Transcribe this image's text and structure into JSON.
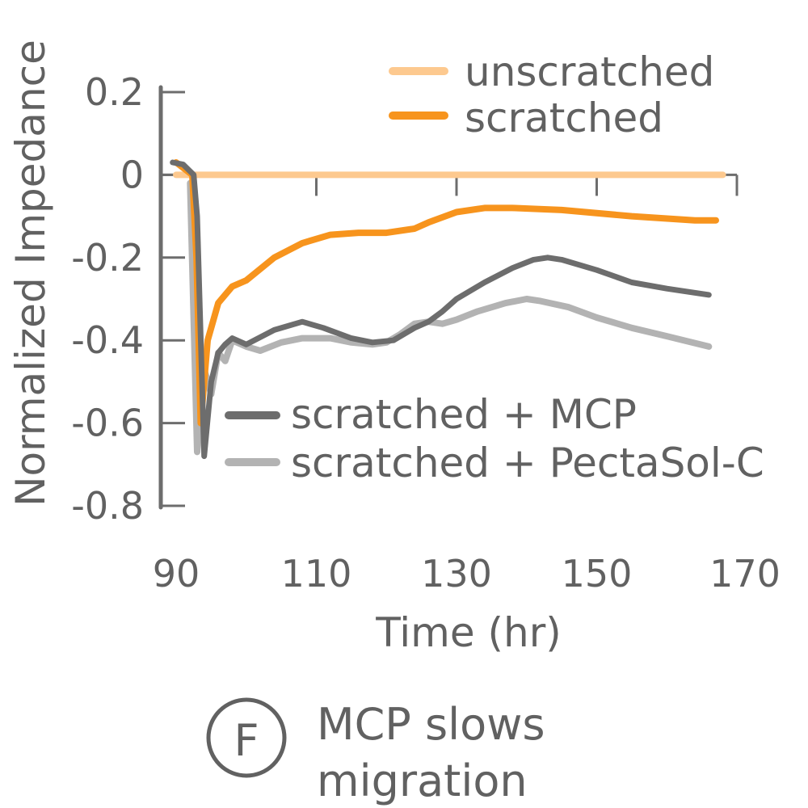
{
  "chart_data": {
    "type": "line",
    "xlabel": "Time (hr)",
    "ylabel": "Normalized Impedance",
    "xlim": [
      90,
      170
    ],
    "ylim": [
      -0.8,
      0.2
    ],
    "xticks": [
      90,
      110,
      130,
      150,
      170
    ],
    "yticks": [
      0.2,
      0,
      -0.2,
      -0.4,
      -0.6,
      -0.8
    ],
    "xtick_labels": [
      "90",
      "110",
      "130",
      "150",
      "170"
    ],
    "ytick_labels": [
      "0.2",
      "0",
      "-0.2",
      "-0.4",
      "-0.6",
      "-0.8"
    ],
    "grid": false,
    "legend_placement": "top-right and center",
    "series": [
      {
        "name": "unscratched",
        "color": "#FDC98F",
        "x": [
          90,
          97,
          110,
          130,
          150,
          168
        ],
        "y": [
          0,
          0,
          0,
          0,
          0,
          0
        ]
      },
      {
        "name": "scratched",
        "color": "#F7941D",
        "x": [
          90,
          92.3,
          92.9,
          93.5,
          94.5,
          96,
          98,
          100,
          104,
          108,
          112,
          116,
          120,
          124,
          126,
          130,
          134,
          138,
          145,
          155,
          164,
          167
        ],
        "y": [
          0.03,
          0.0,
          -0.2,
          -0.6,
          -0.4,
          -0.31,
          -0.27,
          -0.255,
          -0.2,
          -0.165,
          -0.145,
          -0.14,
          -0.14,
          -0.13,
          -0.115,
          -0.09,
          -0.08,
          -0.08,
          -0.085,
          -0.1,
          -0.11,
          -0.11
        ]
      },
      {
        "name": "scratched + MCP",
        "color": "#6D6D6D",
        "x": [
          89.5,
          91,
          92.5,
          93,
          94,
          95,
          96,
          97,
          98,
          100,
          104,
          108,
          111,
          115,
          118,
          121,
          124,
          126,
          128,
          130,
          134,
          138,
          141,
          143,
          145,
          150,
          155,
          160,
          166
        ],
        "y": [
          0.03,
          0.025,
          0.0,
          -0.1,
          -0.68,
          -0.5,
          -0.43,
          -0.41,
          -0.395,
          -0.41,
          -0.375,
          -0.355,
          -0.37,
          -0.395,
          -0.405,
          -0.4,
          -0.37,
          -0.355,
          -0.33,
          -0.3,
          -0.26,
          -0.225,
          -0.205,
          -0.2,
          -0.205,
          -0.23,
          -0.26,
          -0.275,
          -0.29
        ]
      },
      {
        "name": "scratched + PectaSol-C",
        "color": "#B3B3B3",
        "x": [
          92,
          93,
          94,
          95,
          96,
          97,
          98,
          100,
          102,
          105,
          108,
          112,
          115,
          118,
          120,
          122,
          124,
          126,
          128,
          130,
          133,
          137,
          140,
          142,
          146,
          150,
          155,
          160,
          166
        ],
        "y": [
          -0.02,
          -0.67,
          -0.47,
          -0.53,
          -0.43,
          -0.45,
          -0.4,
          -0.415,
          -0.425,
          -0.405,
          -0.395,
          -0.395,
          -0.405,
          -0.41,
          -0.405,
          -0.385,
          -0.36,
          -0.355,
          -0.36,
          -0.35,
          -0.33,
          -0.31,
          -0.3,
          -0.305,
          -0.32,
          -0.345,
          -0.37,
          -0.39,
          -0.415
        ]
      }
    ]
  },
  "legend": [
    {
      "label": "unscratched",
      "color": "#FDC98F"
    },
    {
      "label": "scratched",
      "color": "#F7941D"
    },
    {
      "label": "scratched + MCP",
      "color": "#6D6D6D"
    },
    {
      "label": "scratched + PectaSol-C",
      "color": "#B3B3B3"
    }
  ],
  "caption": {
    "letter": "F",
    "line1": "MCP slows",
    "line2": "migration"
  }
}
